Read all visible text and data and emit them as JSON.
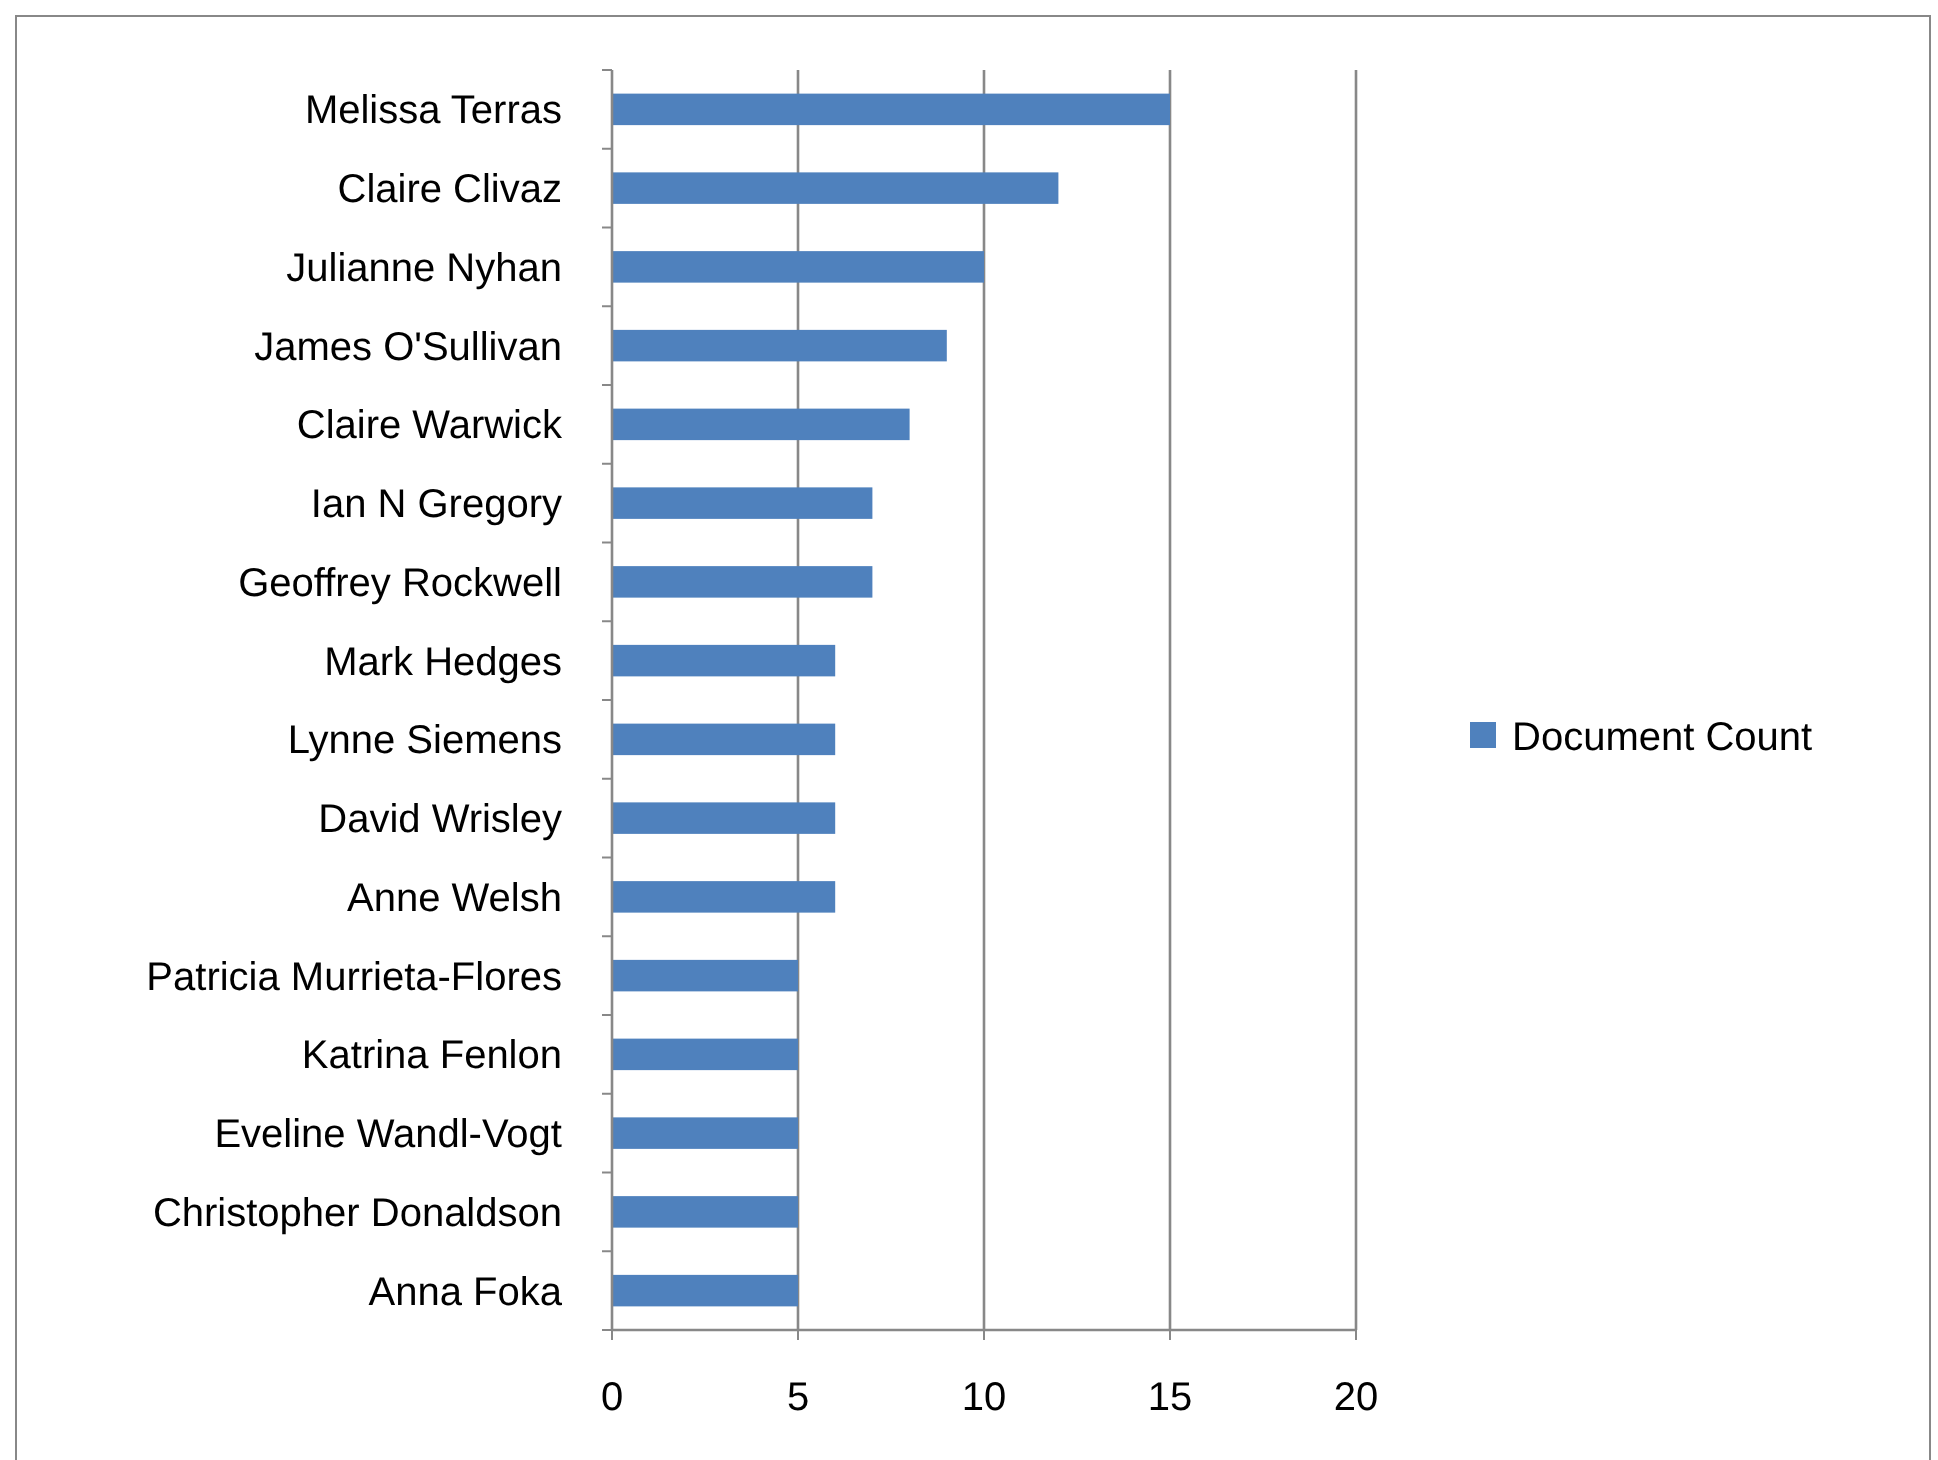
{
  "chart_data": {
    "type": "bar",
    "orientation": "horizontal",
    "categories": [
      "Melissa Terras",
      "Claire Clivaz",
      "Julianne Nyhan",
      "James O'Sullivan",
      "Claire Warwick",
      "Ian N Gregory",
      "Geoffrey Rockwell",
      "Mark Hedges",
      "Lynne Siemens",
      "David Wrisley",
      "Anne Welsh",
      "Patricia Murrieta-Flores",
      "Katrina Fenlon",
      "Eveline Wandl-Vogt",
      "Christopher Donaldson",
      "Anna Foka"
    ],
    "series": [
      {
        "name": "Document Count",
        "color": "#4f81bd",
        "values": [
          15,
          12,
          10,
          9,
          8,
          7,
          7,
          6,
          6,
          6,
          6,
          5,
          5,
          5,
          5,
          5
        ]
      }
    ],
    "xlim": [
      0,
      20
    ],
    "xticks": [
      0,
      5,
      10,
      15,
      20
    ],
    "grid": "x",
    "legend": "right"
  }
}
